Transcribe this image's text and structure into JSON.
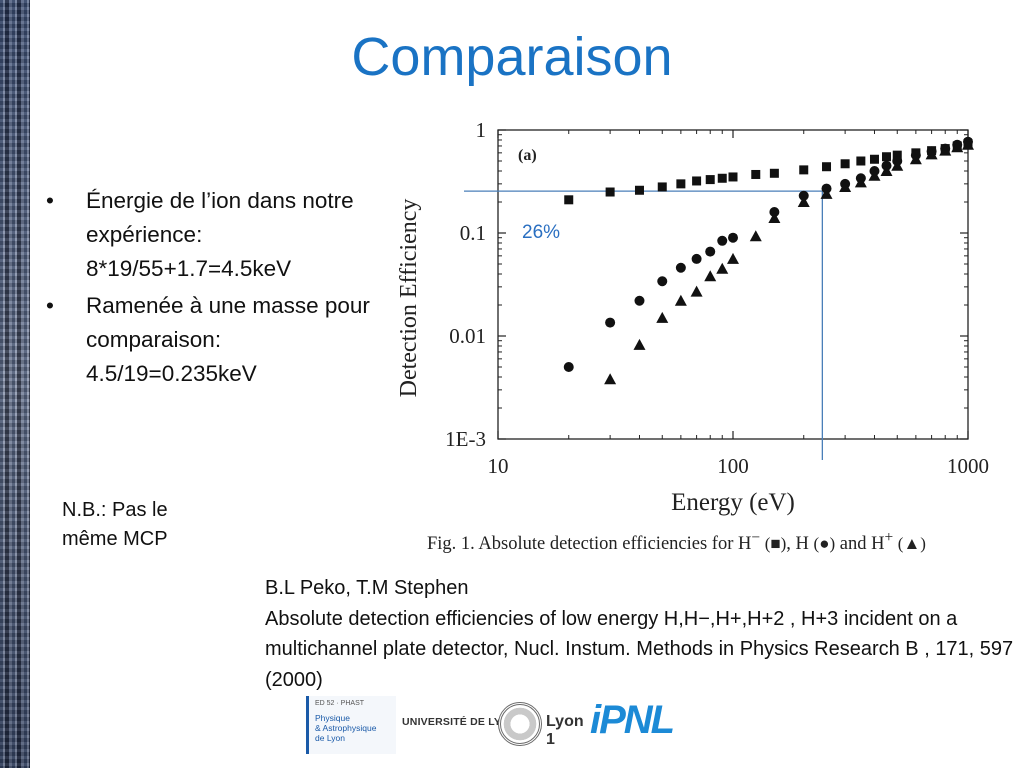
{
  "slide": {
    "title": "Comparaison",
    "bullets": [
      {
        "marker": "•",
        "text": "Énergie de l’ion dans notre expérience: 8*19/55+1.7=4.5keV"
      },
      {
        "marker": "•",
        "text": "Ramenée à une masse pour comparaison: 4.5/19=0.235keV"
      }
    ],
    "note": "N.B.: Pas le même MCP",
    "reference": {
      "authors": "B.L Peko, T.M Stephen",
      "text": "Absolute detection efficiencies of low energy H,H−,H+,H+2 , H+3 incident on a multichannel plate detector, Nucl. Instum. Methods in Physics Research B , 171, 597 (2000)"
    },
    "logos": {
      "phast_top": "ED 52 · PHAST",
      "phast_line1": "Physique",
      "phast_line2": "& Astrophysique",
      "phast_line3": "de Lyon",
      "udl": "UNIVERSITÉ DE LYON",
      "lyon1": "Lyon 1",
      "ipnl": "iPNL"
    }
  },
  "caption": {
    "text_before": "Fig. 1. Absolute detection efficiencies for H",
    "sup_minus": "−",
    "sym_square": "(■)",
    "mid": ", H",
    "sym_circle": "(●)",
    "and": "and H",
    "sup_plus": "+",
    "sym_triangle": "(▲)"
  },
  "chart_data": {
    "type": "scatter",
    "panel_label": "(a)",
    "xlabel": "Energy (eV)",
    "ylabel": "Detection Efficiency",
    "xscale": "log",
    "yscale": "log",
    "xlim": [
      10,
      1000
    ],
    "ylim": [
      0.001,
      1
    ],
    "xticks": [
      {
        "value": 10,
        "label": "10"
      },
      {
        "value": 100,
        "label": "100"
      },
      {
        "value": 1000,
        "label": "1000"
      }
    ],
    "yticks": [
      {
        "value": 1,
        "label": "1"
      },
      {
        "value": 0.1,
        "label": "0.1"
      },
      {
        "value": 0.01,
        "label": "0.01"
      },
      {
        "value": 0.001,
        "label": "1E-3"
      }
    ],
    "series": [
      {
        "marker": "square",
        "x": [
          20,
          30,
          40,
          50,
          60,
          70,
          80,
          90,
          100,
          125,
          150,
          200,
          250,
          300,
          350,
          400,
          450,
          500,
          600,
          700,
          800,
          900,
          1000
        ],
        "y": [
          0.21,
          0.25,
          0.26,
          0.28,
          0.3,
          0.32,
          0.33,
          0.34,
          0.35,
          0.37,
          0.38,
          0.41,
          0.44,
          0.47,
          0.5,
          0.52,
          0.55,
          0.57,
          0.6,
          0.63,
          0.66,
          0.7,
          0.74
        ]
      },
      {
        "marker": "circle",
        "x": [
          20,
          30,
          40,
          50,
          60,
          70,
          80,
          90,
          100,
          150,
          200,
          250,
          300,
          350,
          400,
          450,
          500,
          600,
          700,
          800,
          900,
          1000
        ],
        "y": [
          0.005,
          0.0135,
          0.022,
          0.034,
          0.046,
          0.056,
          0.066,
          0.084,
          0.09,
          0.16,
          0.23,
          0.27,
          0.3,
          0.34,
          0.4,
          0.45,
          0.5,
          0.57,
          0.62,
          0.66,
          0.72,
          0.77
        ]
      },
      {
        "marker": "triangle",
        "x": [
          30,
          40,
          50,
          60,
          70,
          80,
          90,
          100,
          125,
          150,
          200,
          250,
          300,
          350,
          400,
          450,
          500,
          600,
          700,
          800,
          900,
          1000
        ],
        "y": [
          0.0038,
          0.0082,
          0.015,
          0.022,
          0.027,
          0.038,
          0.045,
          0.056,
          0.093,
          0.14,
          0.2,
          0.24,
          0.28,
          0.31,
          0.36,
          0.4,
          0.45,
          0.52,
          0.58,
          0.63,
          0.68,
          0.72
        ]
      }
    ],
    "annotation": {
      "label": "26%",
      "x": 240,
      "y": 0.255,
      "color": "#4a7fb8"
    }
  }
}
